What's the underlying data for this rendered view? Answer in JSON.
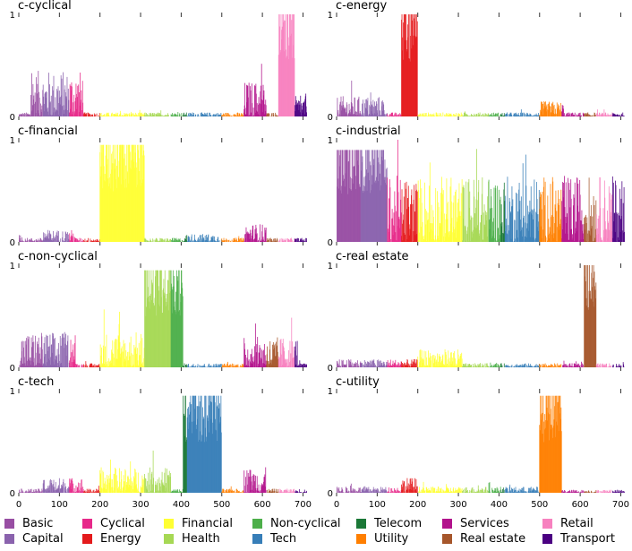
{
  "chart_data": {
    "type": "bar",
    "x_range": [
      0,
      710
    ],
    "y_range": [
      0,
      1
    ],
    "x_ticks": [
      0,
      100,
      200,
      300,
      400,
      500,
      600,
      700
    ],
    "y_ticks": [
      0,
      1
    ],
    "sector_ranges": [
      {
        "name": "Basic",
        "start": 1,
        "end": 60,
        "color": "#984ea3"
      },
      {
        "name": "Capital",
        "start": 60,
        "end": 125,
        "color": "#8a62ad"
      },
      {
        "name": "Cyclical",
        "start": 125,
        "end": 160,
        "color": "#e7298a"
      },
      {
        "name": "Energy",
        "start": 160,
        "end": 200,
        "color": "#e41a1c"
      },
      {
        "name": "Financial",
        "start": 200,
        "end": 310,
        "color": "#ffff33"
      },
      {
        "name": "Health",
        "start": 310,
        "end": 375,
        "color": "#a6d854"
      },
      {
        "name": "Non-cyclical",
        "start": 375,
        "end": 405,
        "color": "#4daf4a"
      },
      {
        "name": "Telecom",
        "start": 405,
        "end": 415,
        "color": "#1b7837"
      },
      {
        "name": "Tech",
        "start": 415,
        "end": 500,
        "color": "#377eb8"
      },
      {
        "name": "Utility",
        "start": 500,
        "end": 555,
        "color": "#ff7f00"
      },
      {
        "name": "Services",
        "start": 555,
        "end": 610,
        "color": "#b2128c"
      },
      {
        "name": "Real estate",
        "start": 610,
        "end": 640,
        "color": "#a6562b"
      },
      {
        "name": "Retail",
        "start": 640,
        "end": 680,
        "color": "#f781bf"
      },
      {
        "name": "Transport",
        "start": 680,
        "end": 710,
        "color": "#4b0082"
      }
    ],
    "panels": [
      {
        "title": "c-cyclical",
        "baseline": 0.04,
        "highlight": [
          640,
          680
        ],
        "highlight_level": 0.95,
        "bumps": [
          {
            "start": 30,
            "end": 160,
            "level": 0.45
          },
          {
            "start": 555,
            "end": 610,
            "level": 0.35
          },
          {
            "start": 680,
            "end": 710,
            "level": 0.2
          }
        ]
      },
      {
        "title": "c-energy",
        "baseline": 0.04,
        "highlight": [
          160,
          200
        ],
        "highlight_level": 0.97,
        "bumps": [
          {
            "start": 1,
            "end": 120,
            "level": 0.2
          },
          {
            "start": 500,
            "end": 560,
            "level": 0.15
          }
        ]
      },
      {
        "title": "c-financial",
        "baseline": 0.04,
        "highlight": [
          200,
          310
        ],
        "highlight_level": 0.9,
        "bumps": [
          {
            "start": 60,
            "end": 140,
            "level": 0.12
          },
          {
            "start": 555,
            "end": 610,
            "level": 0.18
          },
          {
            "start": 410,
            "end": 500,
            "level": 0.08
          }
        ]
      },
      {
        "title": "c-industrial",
        "baseline": 0.25,
        "highlight": [
          1,
          125
        ],
        "highlight_level": 0.85,
        "bumps": [
          {
            "start": 125,
            "end": 710,
            "level": 0.65
          }
        ]
      },
      {
        "title": "c-non-cyclical",
        "baseline": 0.04,
        "highlight": [
          310,
          405
        ],
        "highlight_level": 0.9,
        "bumps": [
          {
            "start": 1,
            "end": 140,
            "level": 0.35
          },
          {
            "start": 200,
            "end": 310,
            "level": 0.35
          },
          {
            "start": 555,
            "end": 690,
            "level": 0.3
          }
        ]
      },
      {
        "title": "c-real estate",
        "baseline": 0.04,
        "highlight": [
          610,
          640
        ],
        "highlight_level": 0.97,
        "bumps": [
          {
            "start": 200,
            "end": 310,
            "level": 0.18
          },
          {
            "start": 1,
            "end": 200,
            "level": 0.08
          }
        ]
      },
      {
        "title": "c-tech",
        "baseline": 0.04,
        "highlight": [
          405,
          500
        ],
        "highlight_level": 0.9,
        "bumps": [
          {
            "start": 200,
            "end": 375,
            "level": 0.25
          },
          {
            "start": 555,
            "end": 610,
            "level": 0.25
          },
          {
            "start": 60,
            "end": 160,
            "level": 0.15
          }
        ]
      },
      {
        "title": "c-utility",
        "baseline": 0.03,
        "highlight": [
          500,
          555
        ],
        "highlight_level": 0.9,
        "bumps": [
          {
            "start": 160,
            "end": 200,
            "level": 0.15
          },
          {
            "start": 1,
            "end": 500,
            "level": 0.06
          }
        ]
      }
    ],
    "legend": [
      {
        "label": "Basic",
        "color": "#984ea3"
      },
      {
        "label": "Capital",
        "color": "#8a62ad"
      },
      {
        "label": "Cyclical",
        "color": "#e7298a"
      },
      {
        "label": "Energy",
        "color": "#e41a1c"
      },
      {
        "label": "Financial",
        "color": "#ffff33"
      },
      {
        "label": "Health",
        "color": "#a6d854"
      },
      {
        "label": "Non-cyclical",
        "color": "#4daf4a"
      },
      {
        "label": "Tech",
        "color": "#377eb8"
      },
      {
        "label": "Telecom",
        "color": "#1b7837"
      },
      {
        "label": "Utility",
        "color": "#ff7f00"
      },
      {
        "label": "Services",
        "color": "#b2128c"
      },
      {
        "label": "Real estate",
        "color": "#a6562b"
      },
      {
        "label": "Retail",
        "color": "#f781bf"
      },
      {
        "label": "Transport",
        "color": "#4b0082"
      }
    ]
  }
}
